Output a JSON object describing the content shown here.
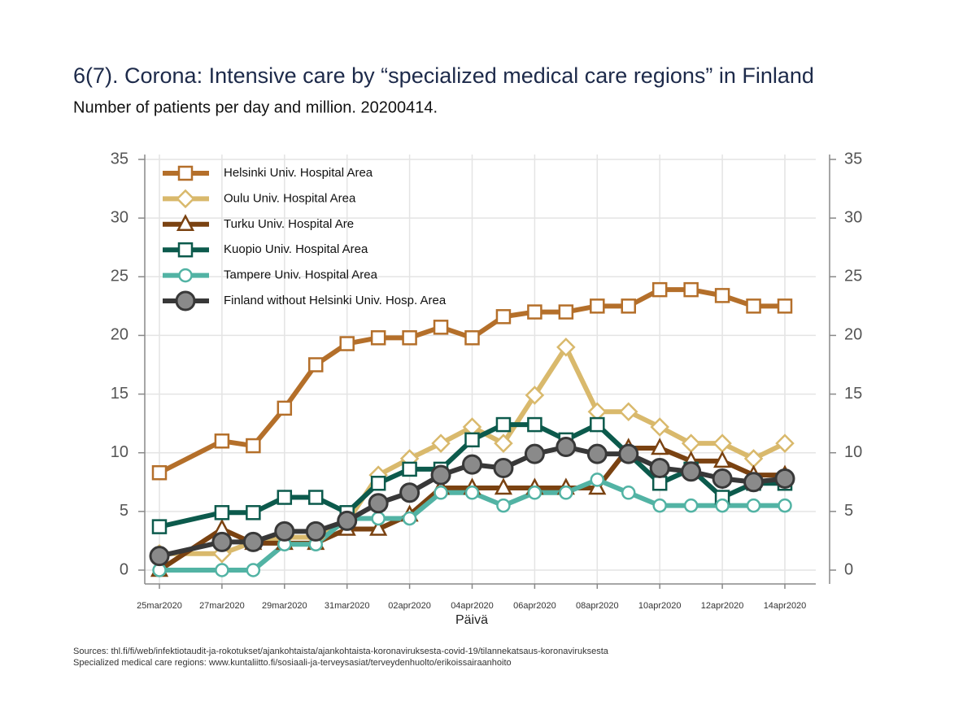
{
  "chart_data": {
    "type": "line",
    "title": "6(7). Corona: Intensive care by “specialized medical care regions” in Finland",
    "subtitle": "Number of patients per day and million. 20200414.",
    "x_label": "Päivä",
    "notes": [
      "Sources: thl.fi/fi/web/infektiotaudit-ja-rokotukset/ajankohtaista/ajankohtaista-koronaviruksesta-covid-19/tilannekatsaus-koronaviruksesta",
      "Specialized medical care regions: www.kuntaliitto.fi/sosiaali-ja-terveysasiat/terveydenhuolto/erikoissairaanhoito"
    ],
    "x": [
      "25mar2020",
      "27mar2020",
      "28mar2020",
      "29mar2020",
      "30mar2020",
      "31mar2020",
      "01apr2020",
      "02apr2020",
      "03apr2020",
      "04apr2020",
      "05apr2020",
      "06apr2020",
      "07apr2020",
      "08apr2020",
      "09apr2020",
      "10apr2020",
      "11apr2020",
      "12apr2020",
      "13apr2020",
      "14apr2020"
    ],
    "xticks": [
      "25mar2020",
      "27mar2020",
      "29mar2020",
      "31mar2020",
      "02apr2020",
      "04apr2020",
      "06apr2020",
      "08apr2020",
      "10apr2020",
      "12apr2020",
      "14apr2020"
    ],
    "ylim": [
      0,
      35
    ],
    "yticks": [
      0,
      5,
      10,
      15,
      20,
      25,
      30,
      35
    ],
    "mirror_y_axis": true,
    "grid": true,
    "legend_position": "upper-left",
    "series": [
      {
        "name": "Helsinki Univ. Hospital Area",
        "color": "#b46f2a",
        "marker": "square",
        "marker_fill": "#ffffff",
        "values": [
          8.3,
          11.0,
          10.6,
          13.8,
          17.5,
          19.3,
          19.8,
          19.8,
          20.7,
          19.8,
          21.6,
          22.0,
          22.0,
          22.5,
          22.5,
          23.9,
          23.9,
          23.4,
          22.5,
          22.5
        ]
      },
      {
        "name": "Oulu Univ. Hospital Area",
        "color": "#d9b96c",
        "marker": "diamond",
        "marker_fill": "#ffffff",
        "values": [
          1.4,
          1.4,
          2.4,
          2.8,
          2.8,
          4.1,
          8.1,
          9.5,
          10.8,
          12.2,
          10.8,
          14.9,
          19.0,
          13.5,
          13.5,
          12.2,
          10.8,
          10.8,
          9.5,
          10.8
        ]
      },
      {
        "name": "Turku Univ. Hospital Are",
        "color": "#7a4211",
        "marker": "triangle",
        "marker_fill": "#ffffff",
        "values": [
          0,
          3.5,
          2.3,
          2.3,
          2.3,
          3.5,
          3.5,
          4.7,
          7.0,
          7.0,
          7.0,
          7.0,
          7.0,
          7.0,
          10.4,
          10.4,
          9.3,
          9.3,
          8.1,
          8.1
        ]
      },
      {
        "name": "Kuopio Univ. Hospital Area",
        "color": "#0c5a4c",
        "marker": "square",
        "marker_fill": "#ffffff",
        "values": [
          3.7,
          4.9,
          4.9,
          6.2,
          6.2,
          4.9,
          7.4,
          8.6,
          8.6,
          11.1,
          12.4,
          12.4,
          11.1,
          12.4,
          9.9,
          7.4,
          8.6,
          6.2,
          7.4,
          7.4
        ]
      },
      {
        "name": "Tampere Univ. Hospital Area",
        "color": "#52b3a4",
        "marker": "circle",
        "marker_fill": "#ffffff",
        "values": [
          0,
          0,
          0,
          2.2,
          2.2,
          4.4,
          4.4,
          4.4,
          6.6,
          6.6,
          5.5,
          6.6,
          6.6,
          7.7,
          6.6,
          5.5,
          5.5,
          5.5,
          5.5,
          5.5
        ]
      },
      {
        "name": "Finland without Helsinki Univ. Hosp. Area",
        "color": "#383838",
        "marker": "big-circle",
        "marker_fill": "#8a8a8a",
        "values": [
          1.2,
          2.4,
          2.4,
          3.3,
          3.3,
          4.2,
          5.7,
          6.6,
          8.1,
          9.0,
          8.7,
          9.9,
          10.5,
          9.9,
          9.9,
          8.7,
          8.4,
          7.8,
          7.5,
          7.8
        ]
      }
    ]
  }
}
